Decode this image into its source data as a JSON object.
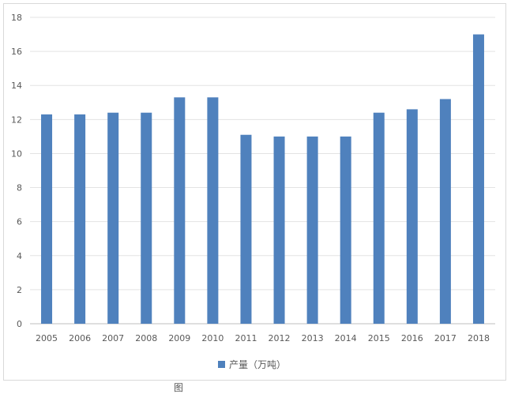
{
  "chart_data": {
    "type": "bar",
    "title": "",
    "xlabel": "",
    "ylabel": "",
    "categories": [
      "2005",
      "2006",
      "2007",
      "2008",
      "2009",
      "2010",
      "2011",
      "2012",
      "2013",
      "2014",
      "2015",
      "2016",
      "2017",
      "2018"
    ],
    "series": [
      {
        "name": "产量（万吨）",
        "values": [
          12.3,
          12.3,
          12.4,
          12.4,
          13.3,
          13.3,
          11.1,
          11.0,
          11.0,
          11.0,
          12.4,
          12.6,
          13.2,
          17.0
        ]
      }
    ],
    "ylim": [
      0,
      18
    ],
    "yticks": [
      0,
      2,
      4,
      6,
      8,
      10,
      12,
      14,
      16,
      18
    ],
    "grid": true,
    "legend_position": "bottom",
    "bar_color": "#4f81bd"
  },
  "caption": "图"
}
